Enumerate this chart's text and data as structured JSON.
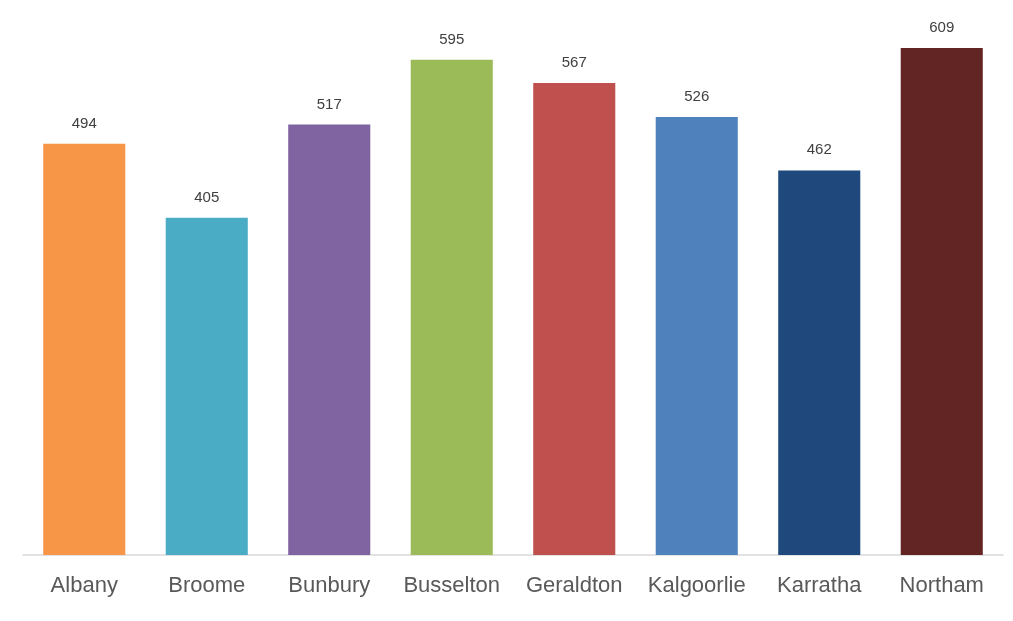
{
  "chart_data": {
    "type": "bar",
    "categories": [
      "Albany",
      "Broome",
      "Bunbury",
      "Busselton",
      "Geraldton",
      "Kalgoorlie",
      "Karratha",
      "Northam"
    ],
    "values": [
      494,
      405,
      517,
      595,
      567,
      526,
      462,
      609
    ],
    "colors": [
      "#f79646",
      "#4bacc6",
      "#8064a2",
      "#9bbb59",
      "#c0504d",
      "#4f81bd",
      "#1f497d",
      "#632523"
    ],
    "data_labels": true
  }
}
